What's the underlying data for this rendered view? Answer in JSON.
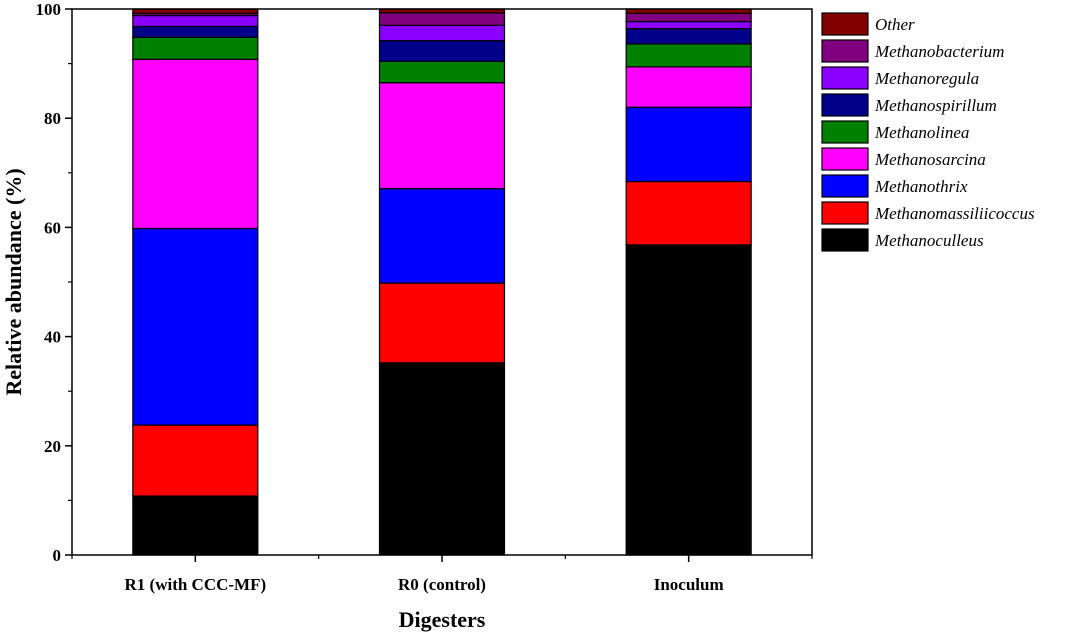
{
  "chart_data": {
    "type": "bar",
    "stacked": true,
    "categories": [
      "R1 (with CCC-MF)",
      "R0 (control)",
      "Inoculum"
    ],
    "series": [
      {
        "name": "Methanoculleus",
        "color": "#000000",
        "values": [
          10.8,
          35.2,
          56.8
        ]
      },
      {
        "name": "Methanomassiliicoccus",
        "color": "#ff0000",
        "values": [
          13.0,
          14.6,
          11.6
        ]
      },
      {
        "name": "Methanothrix",
        "color": "#0000ff",
        "values": [
          36.0,
          17.3,
          13.6
        ]
      },
      {
        "name": "Methanosarcina",
        "color": "#ff00ff",
        "values": [
          31.0,
          19.4,
          7.4
        ]
      },
      {
        "name": "Methanolinea",
        "color": "#008000",
        "values": [
          4.0,
          3.9,
          4.2
        ]
      },
      {
        "name": "Methanospirillum",
        "color": "#00008b",
        "values": [
          2.0,
          3.8,
          2.8
        ]
      },
      {
        "name": "Methanoregula",
        "color": "#8b00ff",
        "values": [
          2.0,
          2.8,
          1.3
        ]
      },
      {
        "name": "Methanobacterium",
        "color": "#800080",
        "values": [
          0.4,
          2.3,
          1.5
        ]
      },
      {
        "name": "Other",
        "color": "#800000",
        "values": [
          0.8,
          0.7,
          0.8
        ]
      }
    ],
    "xlabel": "Digesters",
    "ylabel": "Relative abundance (%)",
    "ylim": [
      0,
      100
    ],
    "yticks": [
      "0",
      "20",
      "40",
      "60",
      "80",
      "100"
    ],
    "legend_position": "top-right",
    "grid": false
  }
}
